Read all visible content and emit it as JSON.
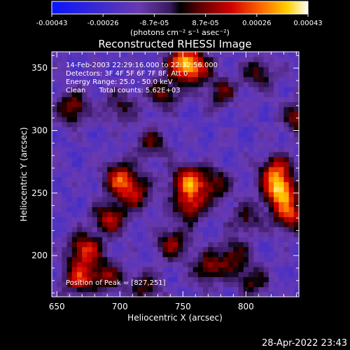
{
  "chart_data": {
    "type": "heatmap",
    "title": "Reconstructed RHESSI Image",
    "xlabel": "Heliocentric X (arcsec)",
    "ylabel": "Heliocentric Y (arcsec)",
    "xlim": [
      646,
      842
    ],
    "ylim": [
      167,
      363
    ],
    "x_ticks": [
      650,
      700,
      750,
      800
    ],
    "y_ticks": [
      200,
      250,
      300,
      350
    ],
    "colorbar": {
      "tick_labels": [
        "-0.00043",
        "-0.00026",
        "-8.7e-05",
        "8.7e-05",
        "0.00026",
        "0.00043"
      ],
      "unit_label": "(photons cm⁻² s⁻¹ asec⁻²)",
      "range": [
        -0.00043,
        0.00043
      ]
    },
    "peak_position": [
      827,
      251
    ],
    "grid": false,
    "annotations": {
      "time_range": "14-Feb-2003 22:29:16.000 to 22:32:56.000",
      "detectors": "Detectors: 3F 4F 5F 6F 7F 8F, Att 0",
      "energy_range": "Energy Range: 25.0 - 50.0 keV",
      "clean_counts": "Clean      Total counts: 5.62E+03",
      "peak": "Position of Peak = [827,251]"
    },
    "sources": [
      {
        "x": 827,
        "y": 251,
        "amp": 1.0
      },
      {
        "x": 824,
        "y": 268,
        "amp": 0.75
      },
      {
        "x": 835,
        "y": 232,
        "amp": 0.7
      },
      {
        "x": 754,
        "y": 260,
        "amp": 0.85
      },
      {
        "x": 756,
        "y": 240,
        "amp": 0.7
      },
      {
        "x": 750,
        "y": 355,
        "amp": 0.8
      },
      {
        "x": 760,
        "y": 350,
        "amp": 0.6
      },
      {
        "x": 672,
        "y": 205,
        "amp": 0.75
      },
      {
        "x": 668,
        "y": 182,
        "amp": 0.7
      },
      {
        "x": 692,
        "y": 230,
        "amp": 0.65
      },
      {
        "x": 700,
        "y": 262,
        "amp": 0.75
      },
      {
        "x": 712,
        "y": 250,
        "amp": 0.6
      },
      {
        "x": 663,
        "y": 318,
        "amp": 0.6
      },
      {
        "x": 742,
        "y": 210,
        "amp": 0.55
      },
      {
        "x": 770,
        "y": 190,
        "amp": 0.55
      },
      {
        "x": 790,
        "y": 200,
        "amp": 0.5
      },
      {
        "x": 805,
        "y": 180,
        "amp": 0.45
      },
      {
        "x": 775,
        "y": 257,
        "amp": 0.5
      },
      {
        "x": 780,
        "y": 330,
        "amp": 0.45
      },
      {
        "x": 735,
        "y": 330,
        "amp": 0.5
      },
      {
        "x": 700,
        "y": 320,
        "amp": 0.4
      },
      {
        "x": 810,
        "y": 345,
        "amp": 0.45
      },
      {
        "x": 842,
        "y": 310,
        "amp": 0.55
      },
      {
        "x": 690,
        "y": 185,
        "amp": 0.5
      },
      {
        "x": 720,
        "y": 175,
        "amp": 0.45
      },
      {
        "x": 800,
        "y": 230,
        "amp": 0.4
      },
      {
        "x": 725,
        "y": 290,
        "amp": 0.45
      }
    ]
  },
  "footer": {
    "timestamp": "28-Apr-2022 23:43"
  }
}
